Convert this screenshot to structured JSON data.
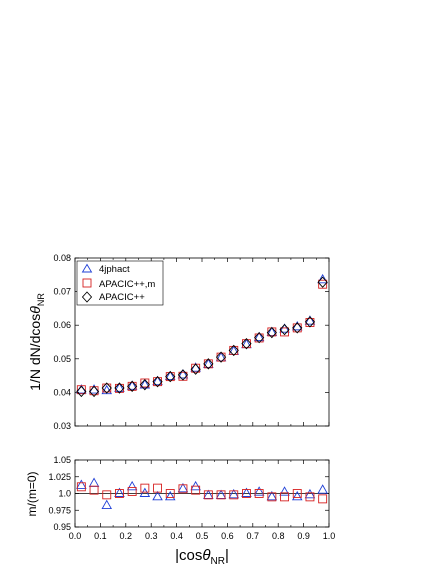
{
  "chart_data": [
    {
      "type": "scatter",
      "xlabel": "|cosθ_NR|",
      "ylabel": "1/N dN/dcosθ_NR",
      "xlim": [
        0.0,
        1.0
      ],
      "ylim": [
        0.03,
        0.08
      ],
      "xticks": [
        "0.0",
        "0.1",
        "0.2",
        "0.3",
        "0.4",
        "0.5",
        "0.6",
        "0.7",
        "0.8",
        "0.9",
        "1.0"
      ],
      "yticks": [
        "0.03",
        "0.04",
        "0.05",
        "0.06",
        "0.07",
        "0.08"
      ],
      "legend": "top-left",
      "x": [
        0.025,
        0.075,
        0.125,
        0.175,
        0.225,
        0.275,
        0.325,
        0.375,
        0.425,
        0.475,
        0.525,
        0.575,
        0.625,
        0.675,
        0.725,
        0.775,
        0.825,
        0.875,
        0.925,
        0.975
      ],
      "series": [
        {
          "name": "4jphact",
          "marker": "triangle",
          "color": "#1f3fd6",
          "values": [
            0.0407,
            0.0407,
            0.0405,
            0.0412,
            0.0418,
            0.0422,
            0.0432,
            0.0447,
            0.0452,
            0.0472,
            0.0483,
            0.0503,
            0.0522,
            0.0542,
            0.0563,
            0.0578,
            0.0588,
            0.0595,
            0.0612,
            0.0735
          ]
        },
        {
          "name": "APACIC++,m",
          "marker": "square",
          "color": "#d62020",
          "values": [
            0.0408,
            0.0405,
            0.0413,
            0.0412,
            0.0418,
            0.0428,
            0.0432,
            0.0447,
            0.0448,
            0.0472,
            0.0485,
            0.0505,
            0.0525,
            0.0545,
            0.0562,
            0.058,
            0.058,
            0.0592,
            0.0608,
            0.0722
          ]
        },
        {
          "name": "APACIC++",
          "marker": "diamond",
          "color": "#000000",
          "values": [
            0.0403,
            0.0403,
            0.0413,
            0.0413,
            0.0418,
            0.0423,
            0.0432,
            0.0447,
            0.0452,
            0.0469,
            0.0485,
            0.0505,
            0.0525,
            0.0545,
            0.0563,
            0.0578,
            0.0587,
            0.0592,
            0.061,
            0.0728
          ]
        }
      ]
    },
    {
      "type": "scatter",
      "xlabel": "|cosθ_NR|",
      "ylabel": "m/(m=0)",
      "xlim": [
        0.0,
        1.0
      ],
      "ylim": [
        0.95,
        1.05
      ],
      "xticks": [
        "0.0",
        "0.1",
        "0.2",
        "0.3",
        "0.4",
        "0.5",
        "0.6",
        "0.7",
        "0.8",
        "0.9",
        "1.0"
      ],
      "yticks": [
        "0.95",
        "0.975",
        "1.0",
        "1.025",
        "1.05"
      ],
      "reference_line": 1.0,
      "x": [
        0.025,
        0.075,
        0.125,
        0.175,
        0.225,
        0.275,
        0.325,
        0.375,
        0.425,
        0.475,
        0.525,
        0.575,
        0.625,
        0.675,
        0.725,
        0.775,
        0.825,
        0.875,
        0.925,
        0.975
      ],
      "series": [
        {
          "marker": "triangle",
          "color": "#1f3fd6",
          "values": [
            1.012,
            1.015,
            0.982,
            1.0,
            1.01,
            1.0,
            0.995,
            0.995,
            1.007,
            1.01,
            0.997,
            0.997,
            0.998,
            1.0,
            1.002,
            0.995,
            1.002,
            0.995,
            0.998,
            1.005
          ]
        },
        {
          "marker": "square",
          "color": "#d62020",
          "values": [
            1.01,
            1.005,
            0.998,
            1.0,
            1.003,
            1.008,
            1.008,
            1.0,
            1.007,
            1.005,
            0.998,
            0.998,
            0.998,
            1.0,
            1.0,
            0.995,
            0.995,
            1.0,
            0.995,
            0.992
          ]
        }
      ]
    }
  ]
}
